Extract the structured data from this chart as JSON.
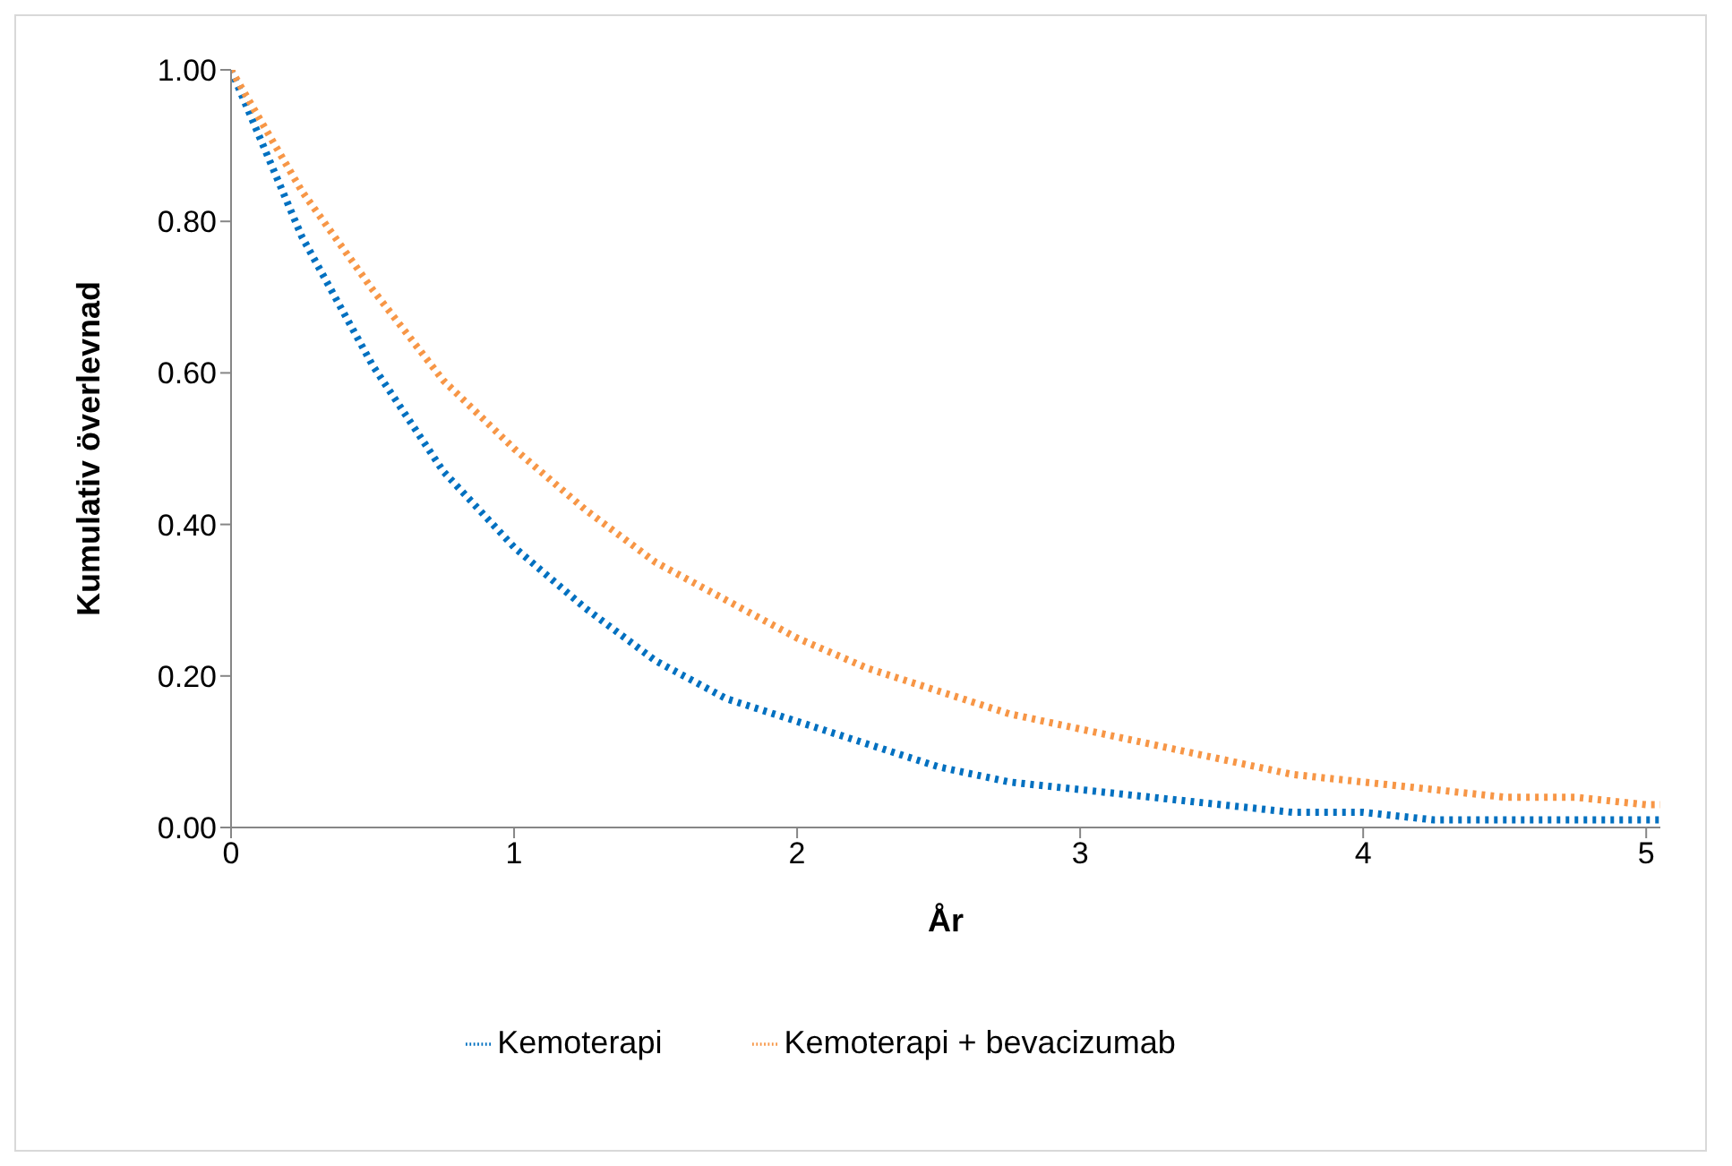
{
  "chart_data": {
    "type": "line",
    "xlabel": "År",
    "ylabel": "Kumulativ överlevnad",
    "x": [
      0,
      0.25,
      0.5,
      0.75,
      1,
      1.25,
      1.5,
      1.75,
      2,
      2.25,
      2.5,
      2.75,
      3,
      3.25,
      3.5,
      3.75,
      4,
      4.25,
      4.5,
      4.75,
      5,
      5.05
    ],
    "series": [
      {
        "name": "Kemoterapi",
        "color": "#0070c0",
        "values": [
          1,
          0.78,
          0.61,
          0.47,
          0.37,
          0.29,
          0.22,
          0.17,
          0.14,
          0.11,
          0.08,
          0.06,
          0.05,
          0.04,
          0.03,
          0.02,
          0.02,
          0.01,
          0.01,
          0.01,
          0.01,
          0.01
        ]
      },
      {
        "name": "Kemoterapi + bevacizumab",
        "color": "#f79646",
        "values": [
          1,
          0.84,
          0.71,
          0.59,
          0.5,
          0.42,
          0.35,
          0.3,
          0.25,
          0.21,
          0.18,
          0.15,
          0.13,
          0.11,
          0.09,
          0.07,
          0.06,
          0.05,
          0.04,
          0.04,
          0.03,
          0.03
        ]
      }
    ],
    "xlim": [
      0,
      5.05
    ],
    "xticks": [
      0,
      1,
      2,
      3,
      4,
      5
    ],
    "ylim": [
      0,
      1
    ],
    "yticks": [
      {
        "value": 0,
        "label": "0.00"
      },
      {
        "value": 0.2,
        "label": "0.20"
      },
      {
        "value": 0.4,
        "label": "0.40"
      },
      {
        "value": 0.6,
        "label": "0.60"
      },
      {
        "value": 0.8,
        "label": "0.80"
      },
      {
        "value": 1,
        "label": "1.00"
      }
    ],
    "grid": false,
    "legend": "bottom",
    "marker": "none",
    "line_style": "dotted"
  }
}
